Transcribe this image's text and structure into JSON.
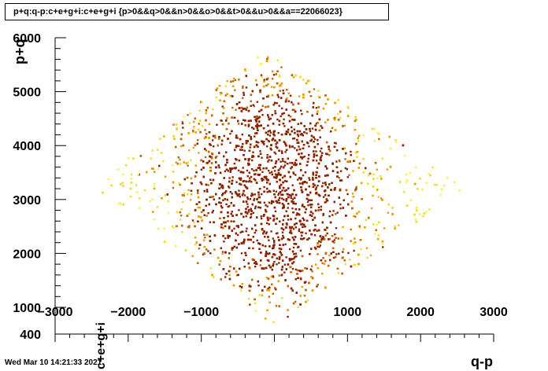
{
  "chart_data": {
    "type": "scatter",
    "title": "p+q:q-p:c+e+g+i:c+e+g+i {p>0&&q>0&&n>0&&o>0&&t>0&&u>0&&a==22066023}",
    "xlabel": "q-p",
    "ylabel": "p+q",
    "zlabel": "c+e+g+i",
    "xlim": [
      -3000,
      3000
    ],
    "ylim": [
      400,
      6000
    ],
    "x_ticks": [
      -3000,
      -2000,
      -1000,
      1000,
      2000,
      3000
    ],
    "y_ticks": [
      400,
      1000,
      2000,
      3000,
      4000,
      5000,
      6000
    ],
    "x_tick_labels": [
      "−3000",
      "−2000",
      "−1000",
      "1000",
      "2000",
      "3000"
    ],
    "y_tick_labels": [
      "400",
      "1000",
      "2000",
      "3000",
      "4000",
      "5000",
      "6000"
    ],
    "region": {
      "bottom": [
        0,
        600
      ],
      "left": [
        -2500,
        3250
      ],
      "top": [
        -150,
        5800
      ],
      "right": [
        2600,
        3250
      ]
    },
    "density_centers": [
      {
        "x": -200,
        "y": 4100,
        "weight": 0.35
      },
      {
        "x": 0,
        "y": 2600,
        "weight": 0.45
      },
      {
        "x": 200,
        "y": 3300,
        "weight": 0.2
      }
    ],
    "color_scale": [
      "#f4f25a",
      "#eedc2e",
      "#e6a100",
      "#c66800",
      "#8b2300"
    ],
    "grid": false,
    "legend": "none"
  },
  "timestamp": "Wed Mar 10 14:21:33 2021"
}
